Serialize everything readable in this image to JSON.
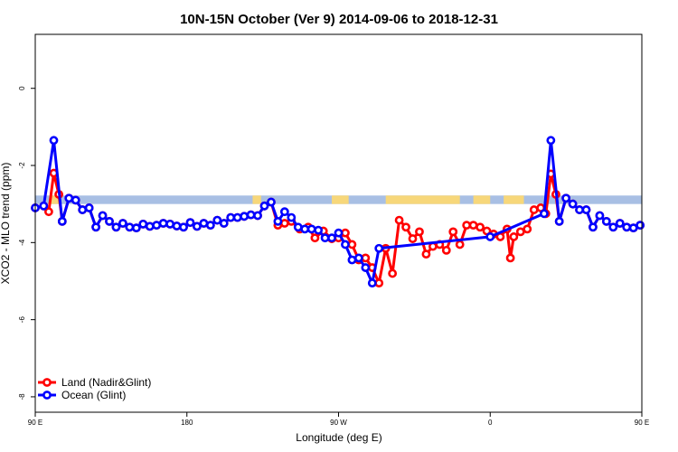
{
  "chart_data": {
    "type": "line",
    "title": "10N-15N October (Ver 9)   2014-09-06 to 2018-12-31",
    "xlabel": "Longitude (deg E)",
    "ylabel": "XCO2 - MLO trend (ppm)",
    "xlim": [
      90,
      450
    ],
    "ylim": [
      -8.4,
      1.4
    ],
    "x_ticks": [
      {
        "value": 90,
        "label": "90 E"
      },
      {
        "value": 180,
        "label": "180"
      },
      {
        "value": 270,
        "label": "90 W"
      },
      {
        "value": 360,
        "label": "0"
      },
      {
        "value": 450,
        "label": "90 E"
      },
      {
        "value": 540,
        "label": "180"
      }
    ],
    "y_ticks": [
      {
        "value": 0,
        "label": "0"
      },
      {
        "value": -2,
        "label": "-2"
      },
      {
        "value": -4,
        "label": "-4"
      },
      {
        "value": -6,
        "label": "-6"
      },
      {
        "value": -8,
        "label": "-8"
      }
    ],
    "land_band": {
      "y_top": -2.78,
      "y_bottom": -3.0,
      "ocean_color": "#a8bfe4",
      "land_color": "#f7d77a"
    },
    "land_segments": [
      [
        99,
        104
      ],
      [
        219,
        224
      ],
      [
        266,
        276
      ],
      [
        298,
        342
      ],
      [
        350,
        360
      ],
      [
        368,
        380
      ],
      [
        454,
        459
      ],
      [
        467,
        471
      ],
      [
        570,
        575
      ],
      [
        587,
        627
      ]
    ],
    "legend": {
      "position": "bottom-left"
    },
    "series": [
      {
        "name": "Land (Nadir&Glint)",
        "color": "#ff0000",
        "points": [
          [
            90,
            -3.1
          ],
          [
            95,
            -3.05
          ],
          [
            98,
            -3.2
          ],
          [
            101,
            -2.2
          ],
          [
            104,
            -2.75
          ],
          [
            106,
            -3.45
          ],
          [
            110,
            -2.85
          ],
          [
            114,
            -2.9
          ],
          [
            118,
            -3.15
          ],
          [
            122,
            -3.1
          ],
          [
            126,
            -3.6
          ],
          [
            130,
            -3.3
          ],
          [
            134,
            -3.45
          ],
          [
            138,
            -3.6
          ],
          [
            142,
            -3.5
          ],
          [
            146,
            -3.6
          ],
          [
            150,
            -3.62
          ],
          [
            154,
            -3.52
          ],
          [
            158,
            -3.58
          ],
          [
            162,
            -3.55
          ],
          [
            166,
            -3.5
          ],
          [
            170,
            -3.52
          ],
          [
            174,
            -3.57
          ],
          [
            178,
            -3.6
          ],
          [
            182,
            -3.48
          ],
          [
            186,
            -3.58
          ],
          [
            190,
            -3.5
          ],
          [
            194,
            -3.55
          ],
          [
            198,
            -3.42
          ],
          [
            202,
            -3.5
          ],
          [
            206,
            -3.35
          ],
          [
            210,
            -3.35
          ],
          [
            214,
            -3.32
          ],
          [
            218,
            -3.28
          ],
          [
            222,
            -3.3
          ],
          [
            226,
            -3.05
          ],
          [
            230,
            -2.95
          ],
          [
            234,
            -3.55
          ],
          [
            238,
            -3.5
          ],
          [
            242,
            -3.45
          ],
          [
            247,
            -3.65
          ],
          [
            252,
            -3.6
          ],
          [
            256,
            -3.88
          ],
          [
            261,
            -3.7
          ],
          [
            266,
            -3.9
          ],
          [
            270,
            -3.88
          ],
          [
            274,
            -3.75
          ],
          [
            278,
            -4.05
          ],
          [
            282,
            -4.45
          ],
          [
            286,
            -4.4
          ],
          [
            290,
            -4.65
          ],
          [
            294,
            -5.05
          ],
          [
            298,
            -4.15
          ],
          [
            302,
            -4.8
          ],
          [
            306,
            -3.42
          ],
          [
            310,
            -3.6
          ],
          [
            314,
            -3.9
          ],
          [
            318,
            -3.72
          ],
          [
            322,
            -4.3
          ],
          [
            326,
            -4.1
          ],
          [
            330,
            -4.05
          ],
          [
            334,
            -4.2
          ],
          [
            338,
            -3.72
          ],
          [
            342,
            -4.05
          ],
          [
            346,
            -3.55
          ],
          [
            350,
            -3.55
          ],
          [
            354,
            -3.6
          ],
          [
            358,
            -3.7
          ],
          [
            362,
            -3.78
          ],
          [
            366,
            -3.85
          ],
          [
            370,
            -3.65
          ],
          [
            372,
            -4.4
          ],
          [
            374,
            -3.85
          ],
          [
            378,
            -3.72
          ],
          [
            382,
            -3.65
          ],
          [
            386,
            -3.15
          ],
          [
            390,
            -3.1
          ],
          [
            393,
            -3.25
          ],
          [
            396,
            -2.22
          ],
          [
            399,
            -2.75
          ],
          [
            401,
            -3.45
          ],
          [
            405,
            -2.85
          ],
          [
            409,
            -3.0
          ],
          [
            413,
            -3.15
          ],
          [
            417,
            -3.15
          ],
          [
            421,
            -3.6
          ],
          [
            425,
            -3.3
          ],
          [
            429,
            -3.45
          ],
          [
            433,
            -3.6
          ],
          [
            437,
            -3.5
          ],
          [
            441,
            -3.6
          ],
          [
            445,
            -3.62
          ],
          [
            449,
            -3.55
          ]
        ]
      },
      {
        "name": "Ocean (Glint)",
        "color": "#0000ff",
        "points": [
          [
            90,
            -3.1
          ],
          [
            95,
            -3.05
          ],
          [
            101,
            -1.35
          ],
          [
            106,
            -3.45
          ],
          [
            110,
            -2.85
          ],
          [
            114,
            -2.9
          ],
          [
            118,
            -3.15
          ],
          [
            122,
            -3.1
          ],
          [
            126,
            -3.6
          ],
          [
            130,
            -3.3
          ],
          [
            134,
            -3.45
          ],
          [
            138,
            -3.6
          ],
          [
            142,
            -3.5
          ],
          [
            146,
            -3.6
          ],
          [
            150,
            -3.62
          ],
          [
            154,
            -3.52
          ],
          [
            158,
            -3.58
          ],
          [
            162,
            -3.55
          ],
          [
            166,
            -3.5
          ],
          [
            170,
            -3.52
          ],
          [
            174,
            -3.57
          ],
          [
            178,
            -3.6
          ],
          [
            182,
            -3.48
          ],
          [
            186,
            -3.58
          ],
          [
            190,
            -3.5
          ],
          [
            194,
            -3.55
          ],
          [
            198,
            -3.42
          ],
          [
            202,
            -3.5
          ],
          [
            206,
            -3.35
          ],
          [
            210,
            -3.35
          ],
          [
            214,
            -3.32
          ],
          [
            218,
            -3.28
          ],
          [
            222,
            -3.3
          ],
          [
            226,
            -3.05
          ],
          [
            230,
            -2.95
          ],
          [
            234,
            -3.45
          ],
          [
            238,
            -3.2
          ],
          [
            242,
            -3.35
          ],
          [
            246,
            -3.6
          ],
          [
            250,
            -3.65
          ],
          [
            254,
            -3.65
          ],
          [
            258,
            -3.68
          ],
          [
            262,
            -3.88
          ],
          [
            266,
            -3.88
          ],
          [
            270,
            -3.75
          ],
          [
            274,
            -4.05
          ],
          [
            278,
            -4.45
          ],
          [
            282,
            -4.4
          ],
          [
            286,
            -4.65
          ],
          [
            290,
            -5.05
          ],
          [
            294,
            -4.15
          ],
          [
            360,
            -3.85
          ],
          [
            392,
            -3.25
          ],
          [
            396,
            -1.35
          ],
          [
            401,
            -3.45
          ],
          [
            405,
            -2.85
          ],
          [
            409,
            -3.0
          ],
          [
            413,
            -3.15
          ],
          [
            417,
            -3.15
          ],
          [
            421,
            -3.6
          ],
          [
            425,
            -3.3
          ],
          [
            429,
            -3.45
          ],
          [
            433,
            -3.6
          ],
          [
            437,
            -3.5
          ],
          [
            441,
            -3.6
          ],
          [
            445,
            -3.62
          ],
          [
            449,
            -3.55
          ]
        ]
      }
    ]
  }
}
